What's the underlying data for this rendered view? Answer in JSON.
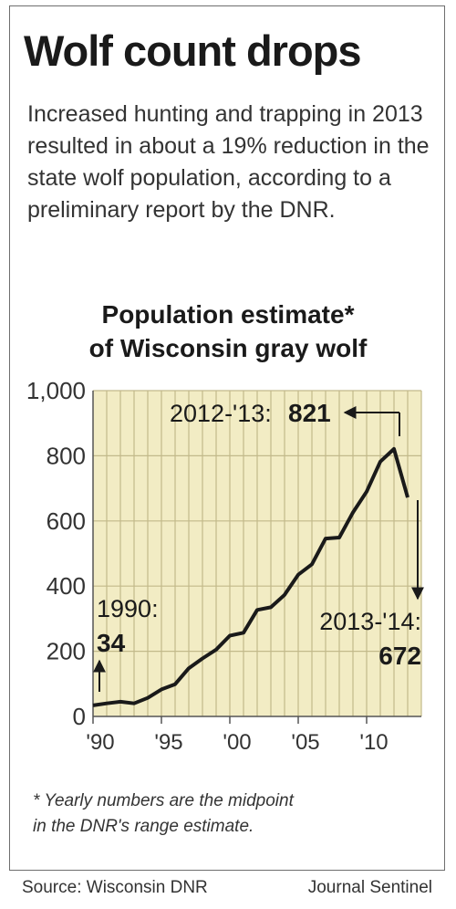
{
  "title": "Wolf count drops",
  "description": "Increased hunting and trapping in 2013 resulted in about a 19% reduction in the state wolf population, according to a preliminary report by the DNR.",
  "footnote_line1": "* Yearly numbers are the midpoint",
  "footnote_line2": "in the DNR's range estimate.",
  "source": "Source: Wisconsin DNR",
  "credit": "Journal Sentinel",
  "colors": {
    "plot_bg": "#f2ecc4",
    "grid": "#c2b98a",
    "line": "#1a1a1a"
  },
  "chart_data": {
    "type": "line",
    "title_line1": "Population estimate*",
    "title_line2": "of Wisconsin gray wolf",
    "xlabel": "",
    "ylabel": "",
    "ylim": [
      0,
      1000
    ],
    "xlim": [
      1990,
      2014
    ],
    "y_ticks": [
      0,
      200,
      400,
      600,
      800,
      1000
    ],
    "y_tick_labels": [
      "0",
      "200",
      "400",
      "600",
      "800",
      "1,000"
    ],
    "x_ticks": [
      1990,
      1995,
      2000,
      2005,
      2010
    ],
    "x_tick_labels": [
      "'90",
      "'95",
      "'00",
      "'05",
      "'10"
    ],
    "grid": true,
    "series": [
      {
        "x": [
          1990,
          1991,
          1992,
          1993,
          1994,
          1995,
          1996,
          1997,
          1998,
          1999,
          2000,
          2001,
          2002,
          2003,
          2004,
          2005,
          2006,
          2007,
          2008,
          2009,
          2010,
          2011,
          2012,
          2013
        ],
        "values": [
          34,
          40,
          45,
          40,
          57,
          83,
          99,
          148,
          178,
          205,
          248,
          257,
          327,
          335,
          373,
          435,
          467,
          546,
          549,
          626,
          690,
          782,
          821,
          672
        ]
      }
    ],
    "annotations": [
      {
        "label": "1990:",
        "value": "34"
      },
      {
        "label": "2012-'13:",
        "value": "821"
      },
      {
        "label": "2013-'14:",
        "value": "672"
      }
    ]
  }
}
